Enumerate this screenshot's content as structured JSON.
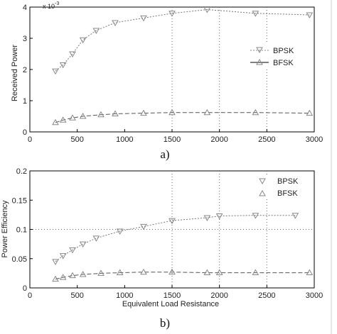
{
  "chart_data": [
    {
      "type": "line",
      "panel_label": "a)",
      "ylabel": "Received Power",
      "xlabel": "",
      "y_exponent_label": "x 10",
      "y_exponent_power": "-3",
      "xlim": [
        0,
        3000
      ],
      "ylim": [
        0,
        4
      ],
      "x_ticks": [
        "0",
        "500",
        "1000",
        "1500",
        "2000",
        "2500",
        "3000"
      ],
      "y_ticks": [
        "0",
        "1",
        "2",
        "3",
        "4"
      ],
      "grid": "dotted at x=1500, 2000, 2500",
      "legend_position": "right-middle",
      "series": [
        {
          "name": "BPSK",
          "marker": "triangle-down",
          "x": [
            270,
            350,
            450,
            560,
            700,
            900,
            1200,
            1500,
            1870,
            2380,
            2950
          ],
          "y": [
            1.95,
            2.15,
            2.5,
            2.95,
            3.25,
            3.5,
            3.65,
            3.8,
            3.92,
            3.8,
            3.75
          ]
        },
        {
          "name": "BFSK",
          "marker": "triangle-up",
          "x": [
            270,
            350,
            450,
            560,
            750,
            900,
            1200,
            1500,
            1870,
            2380,
            2950
          ],
          "y": [
            0.3,
            0.38,
            0.45,
            0.5,
            0.55,
            0.58,
            0.6,
            0.62,
            0.62,
            0.62,
            0.6
          ]
        }
      ]
    },
    {
      "type": "line",
      "panel_label": "b)",
      "ylabel": "Power Efficiency",
      "xlabel": "Equivalent Load Resistance",
      "xlim": [
        0,
        3000
      ],
      "ylim": [
        0,
        0.2
      ],
      "x_ticks": [
        "0",
        "500",
        "1000",
        "1500",
        "2000",
        "2500",
        "3000"
      ],
      "y_ticks": [
        "0",
        "0.05",
        "0.1",
        "0.15",
        "0.2"
      ],
      "grid": "dotted at x=1500, 2000, 2500 and y=0.1",
      "legend_position": "top-right",
      "series": [
        {
          "name": "BPSK",
          "marker": "triangle-down",
          "x": [
            270,
            350,
            450,
            560,
            700,
            950,
            1200,
            1500,
            1870,
            2000,
            2380,
            2800
          ],
          "y": [
            0.045,
            0.055,
            0.065,
            0.075,
            0.085,
            0.097,
            0.105,
            0.115,
            0.12,
            0.123,
            0.124,
            0.124
          ]
        },
        {
          "name": "BFSK",
          "marker": "triangle-up",
          "x": [
            270,
            350,
            450,
            560,
            750,
            950,
            1200,
            1500,
            1870,
            2000,
            2380,
            2950
          ],
          "y": [
            0.015,
            0.018,
            0.021,
            0.023,
            0.025,
            0.026,
            0.027,
            0.027,
            0.026,
            0.026,
            0.026,
            0.026
          ]
        }
      ]
    }
  ]
}
